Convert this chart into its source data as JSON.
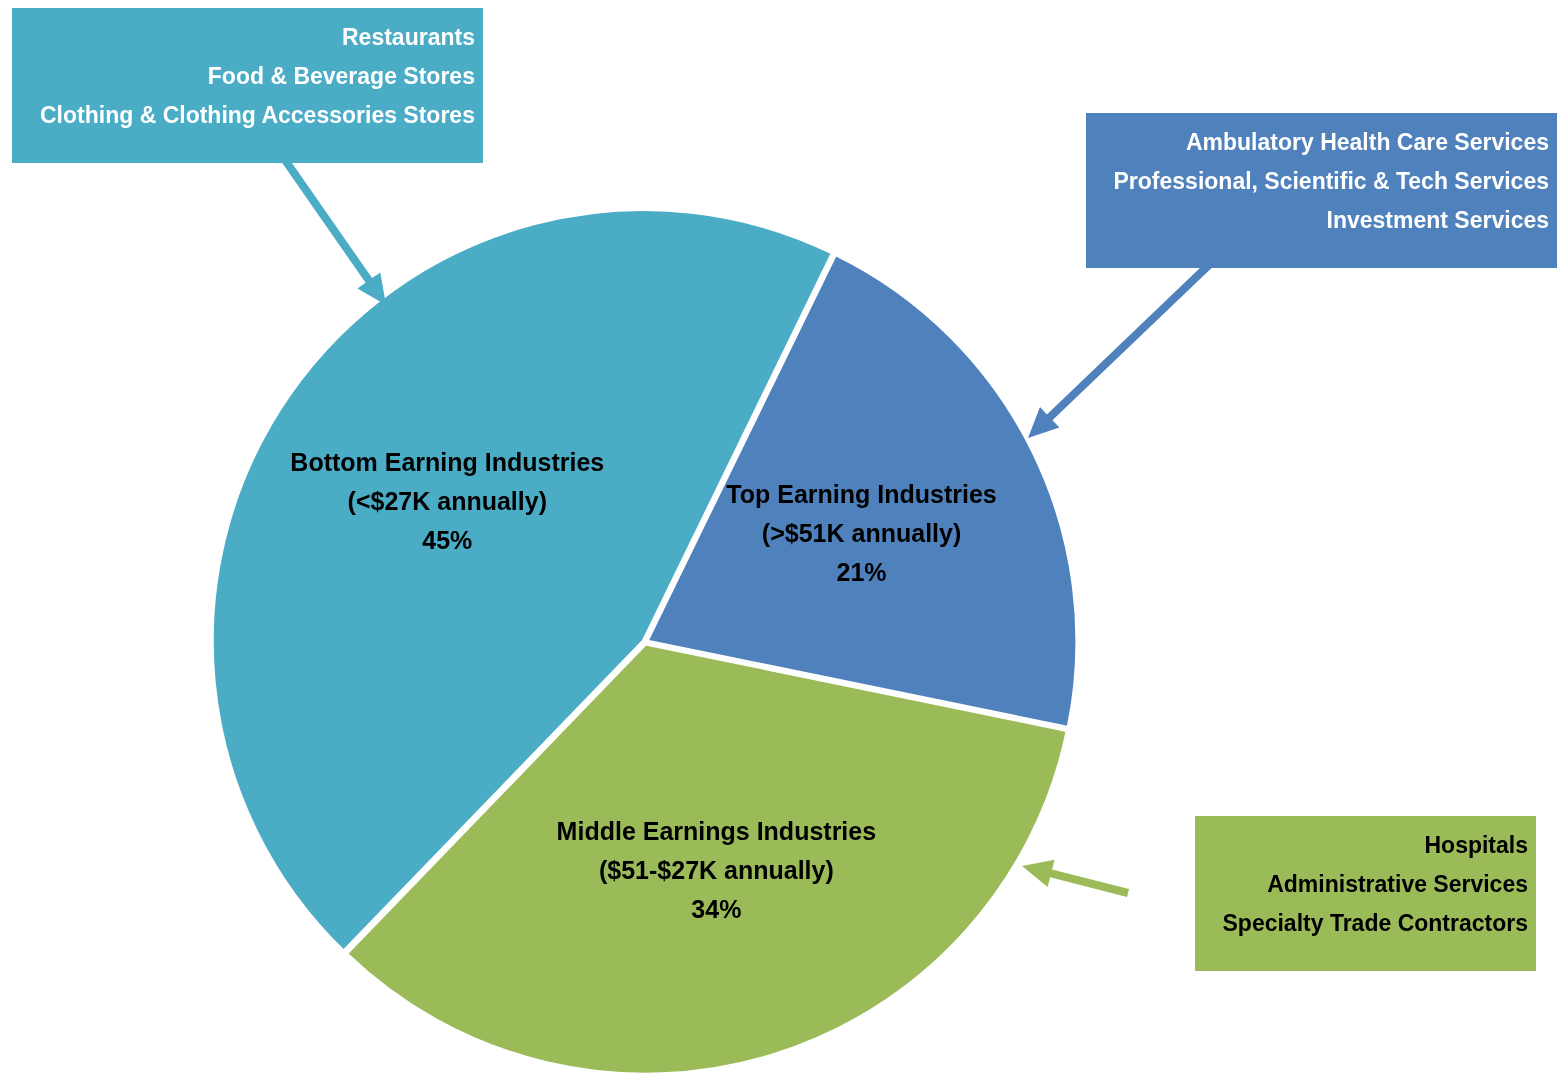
{
  "chart_data": {
    "type": "pie",
    "categories": [
      "Top Earning Industries\n(>$51K annually)",
      "Middle Earnings Industries\n($51-$27K annually)",
      "Bottom Earning Industries\n(<$27K annually)"
    ],
    "values": [
      21,
      34,
      45
    ],
    "value_labels": [
      "21%",
      "34%",
      "45%"
    ],
    "colors": [
      "#4f81bd",
      "#9bbb59",
      "#4bacc6"
    ],
    "legend": false,
    "annotations": [
      "Ambulatory Health Care Services\nProfessional, Scientific & Tech Services\nInvestment Services",
      "Hospitals\nAdministrative Services\nSpecialty Trade Contractors",
      "Restaurants\nFood &  Beverage Stores\nClothing & Clothing Accessories Stores"
    ]
  }
}
